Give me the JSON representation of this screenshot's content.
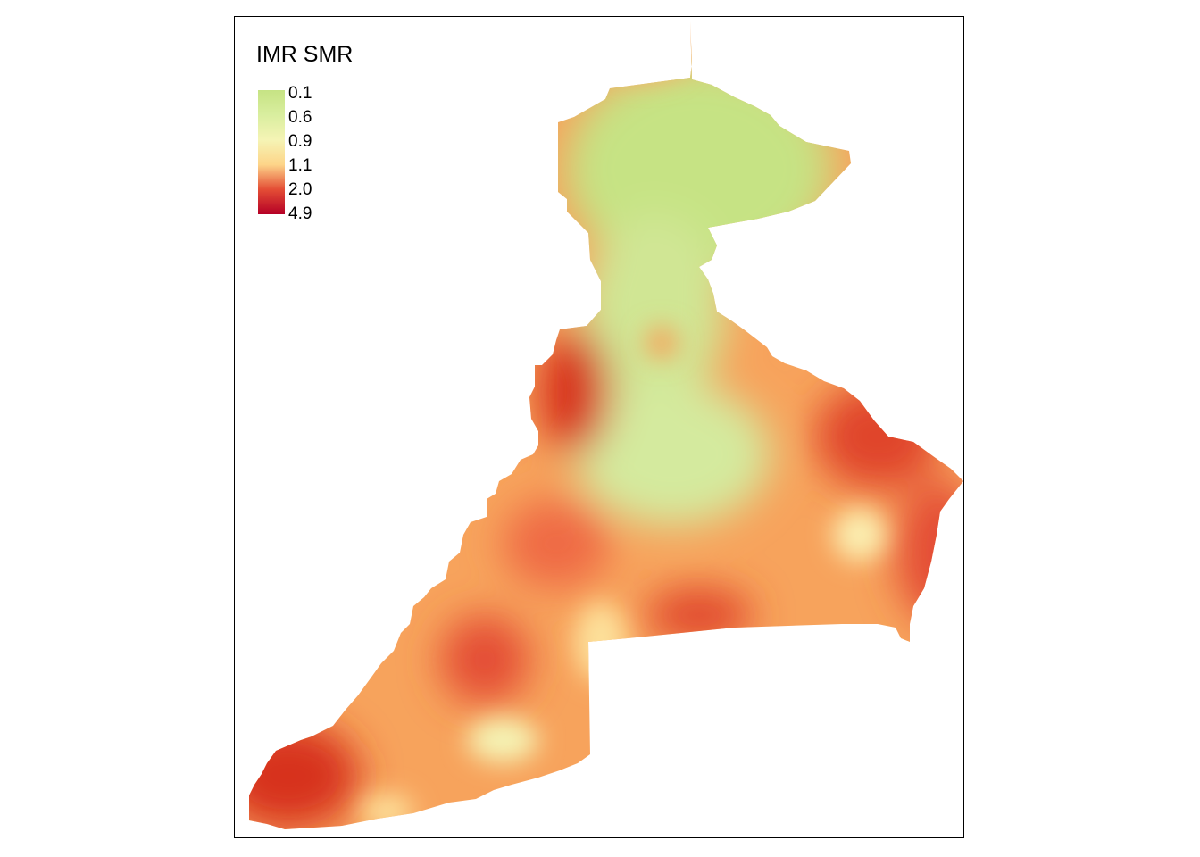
{
  "legend": {
    "title": "IMR SMR",
    "stops": [
      {
        "label": "0.1",
        "color": "#c6e384"
      },
      {
        "label": "0.6",
        "color": "#d9ee9f"
      },
      {
        "label": "0.9",
        "color": "#f5f4b5"
      },
      {
        "label": "1.1",
        "color": "#fdd589"
      },
      {
        "label": "2.0",
        "color": "#e44d35"
      },
      {
        "label": "4.9",
        "color": "#b50026"
      }
    ]
  },
  "colors": {
    "high": "#d7301f",
    "elevated": "#ef6a45",
    "moderate": "#f7a35c",
    "near_one": "#fde09a",
    "low": "#d4ea9e",
    "lowest": "#c6e384"
  }
}
